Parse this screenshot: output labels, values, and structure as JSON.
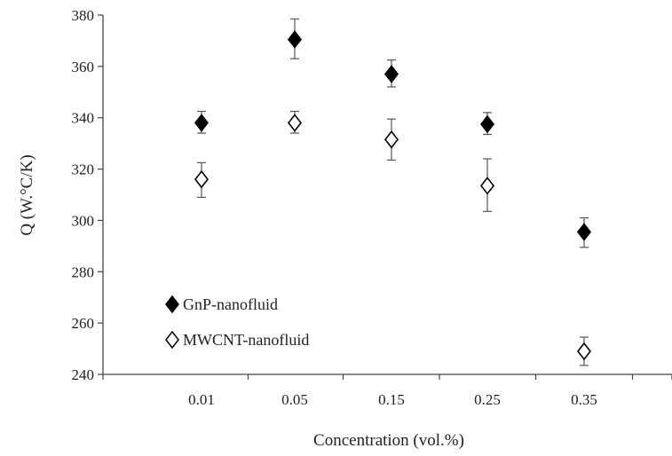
{
  "chart_data": {
    "type": "scatter",
    "xlabel": "Concentration (vol.%)",
    "ylabel": "Q (W.°C/K)",
    "categories": [
      "0.01",
      "0.05",
      "0.15",
      "0.25",
      "0.35"
    ],
    "ylim": [
      240,
      380
    ],
    "yticks": [
      "240",
      "260",
      "280",
      "300",
      "320",
      "340",
      "360",
      "380"
    ],
    "grid": false,
    "legend_position": "lower-left",
    "error_bars": true,
    "series": [
      {
        "name": "GnP-nanofluid",
        "marker": "filled-diamond",
        "color": "#000000",
        "values": [
          338,
          370.5,
          357,
          337.5,
          295.5
        ],
        "err_low": [
          4,
          7.5,
          5,
          4,
          6
        ],
        "err_high": [
          4.5,
          8,
          5.5,
          4.5,
          5.5
        ]
      },
      {
        "name": "MWCNT-nanofluid",
        "marker": "open-diamond",
        "color": "#000000",
        "values": [
          316,
          338,
          331.5,
          313.5,
          249
        ],
        "err_low": [
          7,
          4,
          8,
          10,
          5.5
        ],
        "err_high": [
          6.5,
          4.5,
          8,
          10.5,
          5.5
        ]
      }
    ]
  }
}
